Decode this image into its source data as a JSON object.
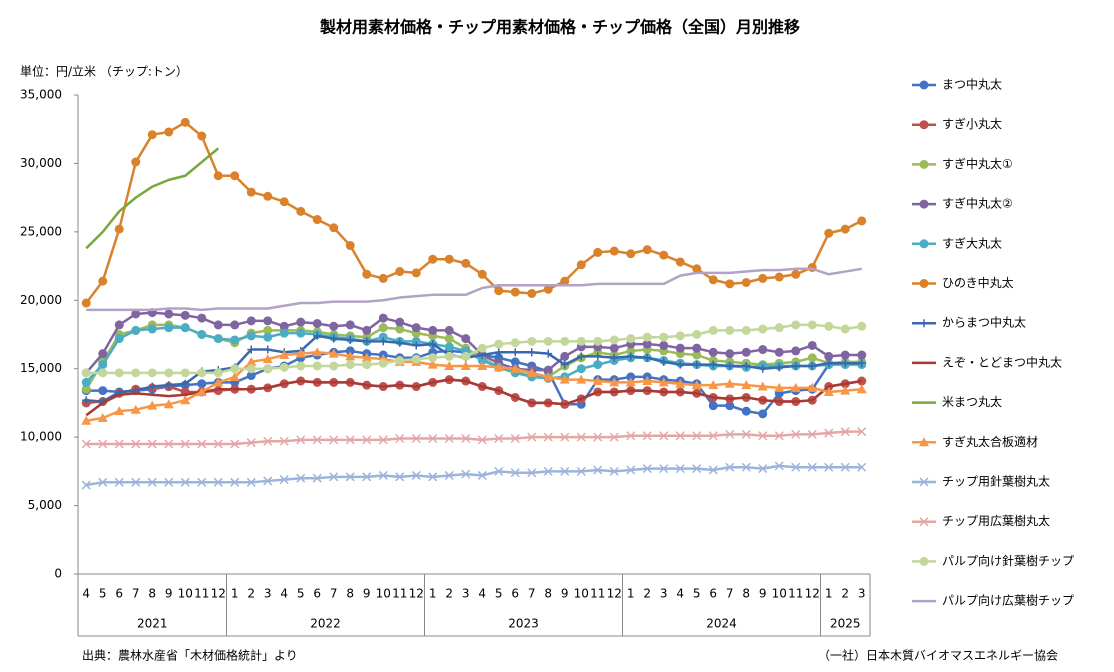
{
  "chart_data": {
    "type": "line",
    "title": "製材用素材価格・チップ用素材価格・チップ価格（全国）月別推移",
    "unit_label": "単位：円/立米 （チップ:トン）",
    "source": "出典：農林水産省「木材価格統計」より",
    "credit": "（一社）日本木質バイオマスエネルギー協会",
    "categories": [
      "4",
      "5",
      "6",
      "7",
      "8",
      "9",
      "10",
      "11",
      "12",
      "1",
      "2",
      "3",
      "4",
      "5",
      "6",
      "7",
      "8",
      "9",
      "10",
      "11",
      "12",
      "1",
      "2",
      "3",
      "4",
      "5",
      "6",
      "7",
      "8",
      "9",
      "10",
      "11",
      "12",
      "1",
      "2",
      "3",
      "4",
      "5",
      "6",
      "7",
      "8",
      "9",
      "10",
      "11",
      "12",
      "1",
      "2",
      "3"
    ],
    "years": [
      "2021",
      "2022",
      "2023",
      "2024",
      "2025"
    ],
    "ylim": [
      0,
      35000
    ],
    "yticks": [
      0,
      {
        "value": 5000,
        "label": "5,000"
      },
      {
        "value": 10000,
        "label": "10,000"
      },
      {
        "value": 15000,
        "label": "15,000"
      },
      {
        "value": 20000,
        "label": "20,000"
      },
      {
        "value": 25000,
        "label": "25,000"
      },
      {
        "value": 30000,
        "label": "30,000"
      },
      {
        "value": 35000,
        "label": "35,000"
      }
    ],
    "legend": "right",
    "series": [
      {
        "name": "まつ中丸太",
        "color": "#4472c4",
        "marker": "circle",
        "values": [
          13400,
          13400,
          13300,
          13400,
          13500,
          13700,
          13800,
          13900,
          14000,
          14000,
          14500,
          15000,
          15200,
          15800,
          16000,
          16200,
          16300,
          16100,
          16000,
          15800,
          15800,
          16200,
          16300,
          16200,
          16000,
          15800,
          15500,
          15200,
          14800,
          12400,
          12400,
          14200,
          14200,
          14400,
          14400,
          14200,
          14100,
          13900,
          12300,
          12300,
          11900,
          11700,
          13200,
          13400,
          13500,
          15300,
          15400,
          15500
        ]
      },
      {
        "name": "すぎ小丸太",
        "color": "#c0504d",
        "marker": "circle",
        "values": [
          12500,
          12600,
          13200,
          13500,
          13600,
          13700,
          13300,
          13300,
          13400,
          13500,
          13500,
          13600,
          13900,
          14100,
          14000,
          14000,
          14000,
          13800,
          13700,
          13800,
          13700,
          14000,
          14200,
          14100,
          13700,
          13400,
          12900,
          12500,
          12500,
          12400,
          12800,
          13300,
          13300,
          13400,
          13400,
          13300,
          13300,
          13200,
          12900,
          12800,
          12900,
          12700,
          12600,
          12600,
          12700,
          13700,
          13900,
          14100
        ]
      },
      {
        "name": "すぎ中丸太①",
        "color": "#9bbb59",
        "marker": "circle",
        "values": [
          13500,
          15500,
          17500,
          17800,
          18200,
          18200,
          18000,
          17500,
          17200,
          16900,
          17600,
          17800,
          17800,
          17800,
          17700,
          17500,
          17400,
          17300,
          18000,
          17900,
          17600,
          17400,
          17200,
          16500,
          15800,
          15100,
          14800,
          14500,
          14400,
          15200,
          15800,
          16200,
          16000,
          16300,
          16400,
          16300,
          16100,
          16000,
          15600,
          15500,
          15400,
          15300,
          15400,
          15500,
          15800,
          15400,
          15500,
          15500
        ]
      },
      {
        "name": "すぎ中丸太②",
        "color": "#8064a2",
        "marker": "circle",
        "values": [
          14700,
          16100,
          18200,
          19000,
          19100,
          19000,
          18900,
          18700,
          18200,
          18200,
          18500,
          18500,
          18100,
          18400,
          18300,
          18100,
          18200,
          17800,
          18700,
          18400,
          18000,
          17800,
          17800,
          17200,
          16000,
          15400,
          15000,
          14900,
          14900,
          15900,
          16600,
          16600,
          16500,
          16800,
          16800,
          16700,
          16500,
          16500,
          16200,
          16100,
          16200,
          16400,
          16200,
          16300,
          16700,
          15900,
          16000,
          16000
        ]
      },
      {
        "name": "すぎ大丸太",
        "color": "#4bacc6",
        "marker": "circle",
        "values": [
          14000,
          15300,
          17200,
          17800,
          17900,
          18000,
          18000,
          17500,
          17200,
          17100,
          17400,
          17300,
          17600,
          17600,
          17500,
          17300,
          17200,
          17000,
          17300,
          17000,
          17000,
          16800,
          16600,
          16300,
          15600,
          15100,
          14700,
          14400,
          14300,
          14400,
          15000,
          15300,
          15600,
          15800,
          15800,
          15600,
          15400,
          15300,
          15200,
          15200,
          15100,
          15200,
          15200,
          15200,
          15200,
          15300,
          15300,
          15300
        ]
      },
      {
        "name": "ひのき中丸太",
        "color": "#d9822b",
        "marker": "circle",
        "values": [
          19800,
          21400,
          25200,
          30100,
          32100,
          32300,
          33000,
          32000,
          29100,
          29100,
          27900,
          27600,
          27200,
          26500,
          25900,
          25300,
          24000,
          21900,
          21600,
          22100,
          22000,
          23000,
          23000,
          22700,
          21900,
          20700,
          20600,
          20500,
          20800,
          21400,
          22600,
          23500,
          23600,
          23400,
          23700,
          23300,
          22800,
          22300,
          21500,
          21200,
          21300,
          21600,
          21700,
          21900,
          22400,
          24900,
          25200,
          25800
        ]
      },
      {
        "name": "からまつ中丸太",
        "color": "#3a68ad",
        "marker": "plus",
        "values": [
          12700,
          12600,
          13300,
          13400,
          13700,
          13800,
          13900,
          14800,
          14900,
          15100,
          16400,
          16400,
          16200,
          16300,
          17400,
          17200,
          17100,
          17000,
          17000,
          16900,
          16700,
          16800,
          16000,
          15800,
          16000,
          16200,
          16200,
          16200,
          16100,
          15300,
          15900,
          15900,
          15800,
          15900,
          15800,
          15500,
          15300,
          15300,
          15300,
          15200,
          15200,
          15000,
          15100,
          15200,
          15200,
          15400,
          15400,
          15400
        ]
      },
      {
        "name": "えぞ・とどまつ中丸太",
        "color": "#a83a36",
        "marker": "none",
        "values": [
          11600,
          12500,
          13100,
          13200,
          13100,
          13000,
          13100,
          13300,
          13500,
          13500,
          13500,
          13600,
          13900,
          14100,
          14000,
          14000,
          14000,
          13800,
          13700,
          13800,
          13700,
          14000,
          14200,
          14100,
          13700,
          13400,
          12900,
          12500,
          12500,
          12400,
          12800,
          13300,
          13300,
          13400,
          13400,
          13300,
          13300,
          13200,
          12900,
          12800,
          12900,
          12700,
          12600,
          12600,
          12700,
          13700,
          13900,
          14100
        ]
      },
      {
        "name": "米まつ丸太",
        "color": "#77a83c",
        "marker": "none",
        "values": [
          23800,
          25000,
          26500,
          27500,
          28300,
          28800,
          29100,
          30100,
          31100,
          null,
          null,
          null,
          null,
          null,
          null,
          null,
          null,
          null,
          null,
          null,
          null,
          null,
          null,
          null,
          null,
          null,
          null,
          null,
          null,
          null,
          null,
          null,
          null,
          null,
          null,
          null,
          null,
          null,
          null,
          null,
          null,
          null,
          null,
          null,
          null,
          null,
          null,
          null
        ]
      },
      {
        "name": "すぎ丸太合板適材",
        "color": "#f79646",
        "marker": "triangle",
        "values": [
          11200,
          11400,
          11900,
          12000,
          12300,
          12400,
          12700,
          13300,
          14000,
          14400,
          15500,
          15700,
          16000,
          16100,
          16200,
          16100,
          15900,
          15800,
          15700,
          15500,
          15500,
          15300,
          15200,
          15200,
          15200,
          15100,
          15000,
          14700,
          14400,
          14200,
          14200,
          14100,
          14000,
          14000,
          14100,
          14000,
          13900,
          13800,
          13800,
          13900,
          13800,
          13700,
          13600,
          13600,
          13600,
          13300,
          13400,
          13500
        ]
      },
      {
        "name": "チップ用針葉樹丸太",
        "color": "#9db3d9",
        "marker": "x",
        "values": [
          6500,
          6700,
          6700,
          6700,
          6700,
          6700,
          6700,
          6700,
          6700,
          6700,
          6700,
          6800,
          6900,
          7000,
          7000,
          7100,
          7100,
          7100,
          7200,
          7100,
          7200,
          7100,
          7200,
          7300,
          7200,
          7500,
          7400,
          7400,
          7500,
          7500,
          7500,
          7600,
          7500,
          7600,
          7700,
          7700,
          7700,
          7700,
          7600,
          7800,
          7800,
          7700,
          7900,
          7800,
          7800,
          7800,
          7800,
          7800
        ]
      },
      {
        "name": "チップ用広葉樹丸太",
        "color": "#e3a7a5",
        "marker": "x",
        "values": [
          9500,
          9500,
          9500,
          9500,
          9500,
          9500,
          9500,
          9500,
          9500,
          9500,
          9600,
          9700,
          9700,
          9800,
          9800,
          9800,
          9800,
          9800,
          9800,
          9900,
          9900,
          9900,
          9900,
          9900,
          9800,
          9900,
          9900,
          10000,
          10000,
          10000,
          10000,
          10000,
          10000,
          10100,
          10100,
          10100,
          10100,
          10100,
          10100,
          10200,
          10200,
          10100,
          10100,
          10200,
          10200,
          10300,
          10400,
          10400
        ]
      },
      {
        "name": "パルプ向け針葉樹チップ",
        "color": "#c4d79b",
        "marker": "circle",
        "values": [
          14700,
          14700,
          14700,
          14700,
          14700,
          14700,
          14700,
          14700,
          14700,
          15000,
          15000,
          15000,
          15100,
          15200,
          15200,
          15200,
          15300,
          15300,
          15400,
          15600,
          15700,
          15800,
          15900,
          15900,
          16500,
          16800,
          16900,
          17000,
          17000,
          17000,
          17000,
          17000,
          17100,
          17200,
          17300,
          17300,
          17400,
          17500,
          17800,
          17800,
          17800,
          17900,
          18000,
          18200,
          18200,
          18100,
          17900,
          18100
        ]
      },
      {
        "name": "パルプ向け広葉樹チップ",
        "color": "#b3a2c7",
        "marker": "none",
        "values": [
          19300,
          19300,
          19300,
          19300,
          19300,
          19400,
          19400,
          19300,
          19400,
          19400,
          19400,
          19400,
          19600,
          19800,
          19800,
          19900,
          19900,
          19900,
          20000,
          20200,
          20300,
          20400,
          20400,
          20400,
          20900,
          21100,
          21100,
          21100,
          21100,
          21100,
          21100,
          21200,
          21200,
          21200,
          21200,
          21200,
          21800,
          22000,
          22000,
          22000,
          22100,
          22200,
          22200,
          22300,
          22300,
          21900,
          22100,
          22300
        ]
      }
    ]
  }
}
